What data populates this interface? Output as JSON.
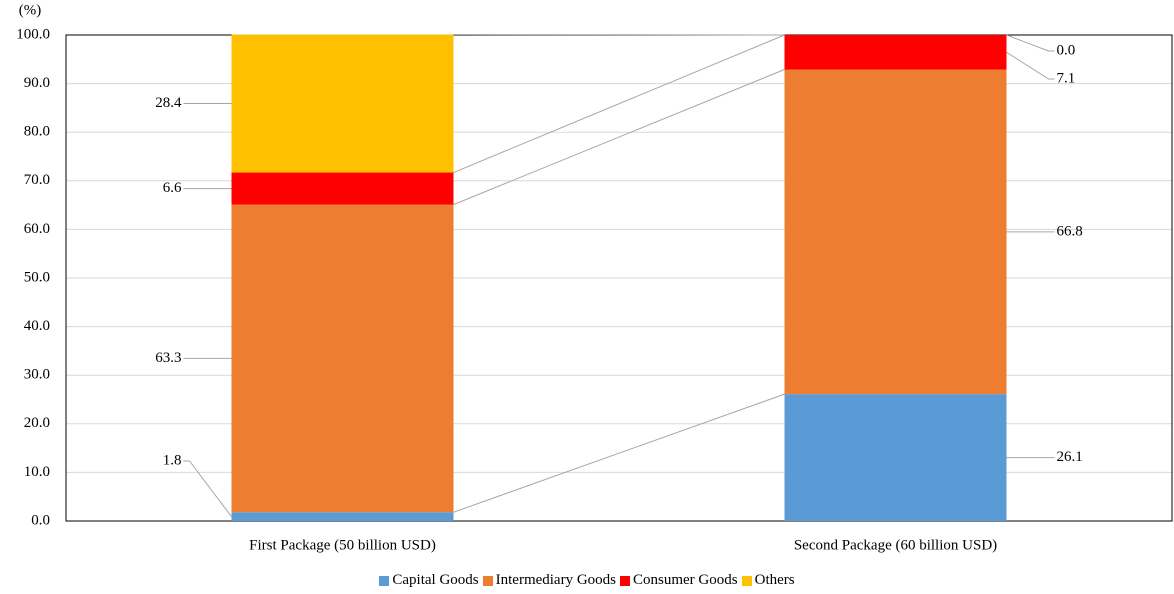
{
  "chart_data": {
    "type": "stacked-bar",
    "y_label": "(%)",
    "categories": [
      "First Package (50 billion USD)",
      "Second Package (60 billion USD)"
    ],
    "series": [
      {
        "name": "Capital Goods",
        "color": "#5b9bd5",
        "values": [
          1.8,
          26.1
        ]
      },
      {
        "name": "Intermediary Goods",
        "color": "#ed7d31",
        "values": [
          63.3,
          66.8
        ]
      },
      {
        "name": "Consumer Goods",
        "color": "#ff0000",
        "values": [
          6.6,
          7.1
        ]
      },
      {
        "name": "Others",
        "color": "#ffc000",
        "values": [
          28.4,
          0.0
        ],
        "value_labels": [
          "28.4",
          "0.0"
        ]
      }
    ],
    "ylim": [
      0,
      100
    ],
    "yticks": [
      {
        "value": 0,
        "label": "0.0"
      },
      {
        "value": 10,
        "label": "10.0"
      },
      {
        "value": 20,
        "label": "20.0"
      },
      {
        "value": 30,
        "label": "30.0"
      },
      {
        "value": 40,
        "label": "40.0"
      },
      {
        "value": 50,
        "label": "50.0"
      },
      {
        "value": 60,
        "label": "60.0"
      },
      {
        "value": 70,
        "label": "70.0"
      },
      {
        "value": 80,
        "label": "80.0"
      },
      {
        "value": 90,
        "label": "90.0"
      },
      {
        "value": 100,
        "label": "100.0"
      }
    ],
    "grid": true,
    "legend": "bottom"
  }
}
